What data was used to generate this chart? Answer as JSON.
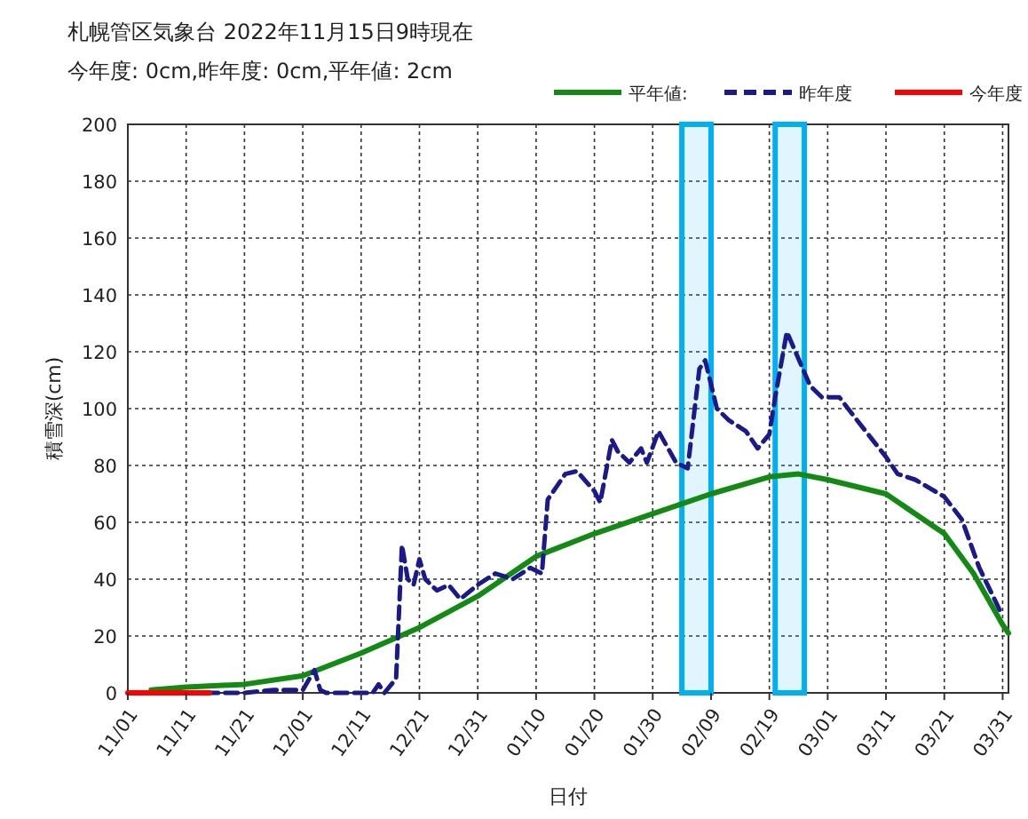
{
  "chart_data": {
    "type": "line",
    "title": "札幌管区気象台 2022年11月15日9時現在",
    "subtitle": "今年度: 0cm,昨年度: 0cm,平年値: 2cm",
    "xlabel": "日付",
    "ylabel": "積雪深(cm)",
    "xlim": [
      "2021-11-01",
      "2022-04-01"
    ],
    "xticks": [
      {
        "value": "2021-11-01",
        "label": "11/01"
      },
      {
        "value": "2021-11-11",
        "label": "11/11"
      },
      {
        "value": "2021-11-21",
        "label": "11/21"
      },
      {
        "value": "2021-12-01",
        "label": "12/01"
      },
      {
        "value": "2021-12-11",
        "label": "12/11"
      },
      {
        "value": "2021-12-21",
        "label": "12/21"
      },
      {
        "value": "2021-12-31",
        "label": "12/31"
      },
      {
        "value": "2022-01-10",
        "label": "01/10"
      },
      {
        "value": "2022-01-20",
        "label": "01/20"
      },
      {
        "value": "2022-01-30",
        "label": "01/30"
      },
      {
        "value": "2022-02-09",
        "label": "02/09"
      },
      {
        "value": "2022-02-19",
        "label": "02/19"
      },
      {
        "value": "2022-03-01",
        "label": "03/01"
      },
      {
        "value": "2022-03-11",
        "label": "03/11"
      },
      {
        "value": "2022-03-21",
        "label": "03/21"
      },
      {
        "value": "2022-03-31",
        "label": "03/31"
      }
    ],
    "ylim": [
      0,
      200
    ],
    "yticks": [
      0,
      20,
      40,
      60,
      80,
      100,
      120,
      140,
      160,
      180,
      200
    ],
    "grid": true,
    "legend": "top",
    "marker": "none",
    "series": [
      {
        "name": "平年値:",
        "color": "#138a13",
        "line_style": "solid",
        "x": [
          "2021-11-05",
          "2021-11-11",
          "2021-11-21",
          "2021-12-01",
          "2021-12-11",
          "2021-12-21",
          "2021-12-31",
          "2022-01-10",
          "2022-01-20",
          "2022-01-30",
          "2022-02-09",
          "2022-02-19",
          "2022-02-24",
          "2022-03-01",
          "2022-03-11",
          "2022-03-21",
          "2022-03-26",
          "2022-03-31",
          "2022-04-01"
        ],
        "values": [
          1,
          2,
          3,
          6,
          14,
          23,
          34,
          48,
          56,
          63,
          70,
          76,
          77,
          75,
          70,
          56,
          42,
          24,
          21
        ]
      },
      {
        "name": "昨年度",
        "color": "#1a1a8c",
        "line_style": "dashed",
        "x": [
          "2021-11-11",
          "2021-11-21",
          "2021-11-26",
          "2021-12-01",
          "2021-12-03",
          "2021-12-04",
          "2021-12-05",
          "2021-12-13",
          "2021-12-14",
          "2021-12-15",
          "2021-12-17",
          "2021-12-18",
          "2021-12-19",
          "2021-12-20",
          "2021-12-21",
          "2021-12-22",
          "2021-12-24",
          "2021-12-26",
          "2021-12-28",
          "2021-12-31",
          "2022-01-03",
          "2022-01-06",
          "2022-01-09",
          "2022-01-11",
          "2022-01-12",
          "2022-01-15",
          "2022-01-17",
          "2022-01-20",
          "2022-01-21",
          "2022-01-23",
          "2022-01-24",
          "2022-01-26",
          "2022-01-28",
          "2022-01-29",
          "2022-01-31",
          "2022-02-03",
          "2022-02-05",
          "2022-02-07",
          "2022-02-08",
          "2022-02-10",
          "2022-02-12",
          "2022-02-15",
          "2022-02-17",
          "2022-02-19",
          "2022-02-20",
          "2022-02-22",
          "2022-02-26",
          "2022-02-28",
          "2022-03-03",
          "2022-03-06",
          "2022-03-11",
          "2022-03-13",
          "2022-03-16",
          "2022-03-21",
          "2022-03-24",
          "2022-03-27",
          "2022-03-31"
        ],
        "values": [
          0,
          0,
          1,
          1,
          8,
          1,
          0,
          0,
          3,
          0,
          5,
          52,
          40,
          38,
          47,
          40,
          36,
          38,
          33,
          38,
          42,
          40,
          44,
          42,
          68,
          77,
          78,
          71,
          67,
          89,
          85,
          81,
          86,
          81,
          92,
          81,
          79,
          114,
          117,
          100,
          96,
          92,
          86,
          91,
          104,
          127,
          108,
          104,
          104,
          96,
          83,
          77,
          75,
          69,
          61,
          44,
          27
        ]
      },
      {
        "name": "今年度",
        "color": "#ff0000",
        "line_style": "solid",
        "x": [
          "2021-11-01",
          "2021-11-15"
        ],
        "values": [
          0,
          0
        ]
      }
    ],
    "bands": [
      {
        "axis": "x",
        "from": "2022-02-04",
        "to": "2022-02-09",
        "color": "#00b0f0"
      },
      {
        "axis": "x",
        "from": "2022-02-20",
        "to": "2022-02-25",
        "color": "#00b0f0"
      }
    ]
  }
}
